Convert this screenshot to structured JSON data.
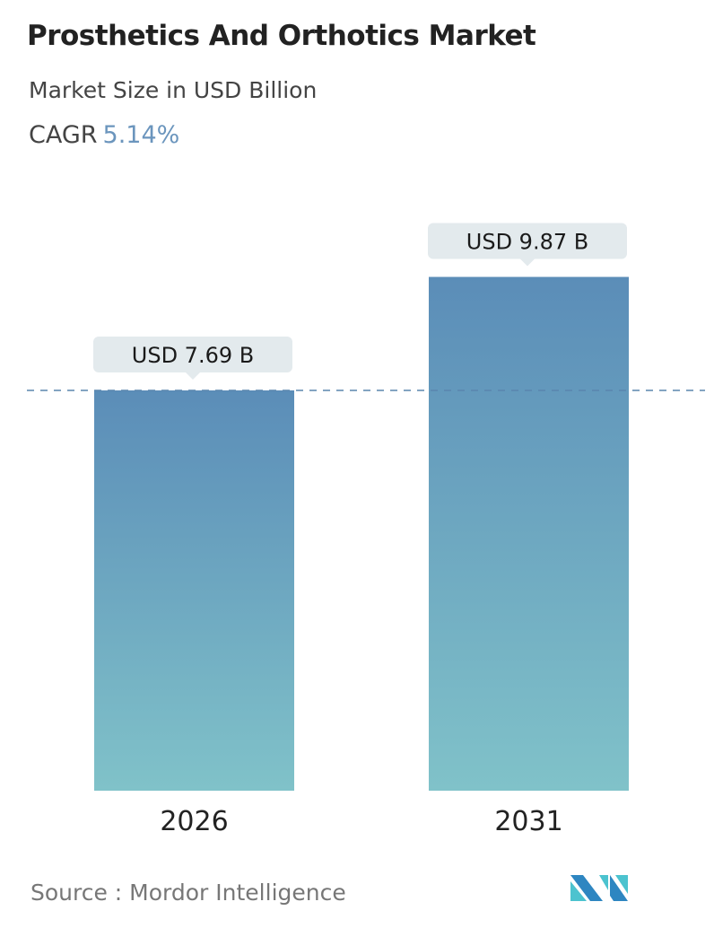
{
  "header": {
    "title": "Prosthetics And Orthotics Market",
    "subtitle": "Market Size in USD Billion",
    "cagr_label": "CAGR",
    "cagr_value": "5.14%"
  },
  "chart_data": {
    "type": "bar",
    "categories": [
      "2026",
      "2031"
    ],
    "values": [
      7.69,
      9.87
    ],
    "data_labels": [
      "USD 7.69 B",
      "USD 9.87 B"
    ],
    "unit": "USD Billion",
    "ylim": [
      0,
      10
    ],
    "grid": false,
    "reference_line": 7.69,
    "colors": {
      "bar_top": "#5b8db8",
      "bar_bottom": "#80c2c9",
      "label_bg": "#e3eaed",
      "ref_line": "#5a86ad"
    }
  },
  "footer": {
    "source": "Source :  Mordor Intelligence",
    "logo_text": "Mordor Intelligence"
  }
}
